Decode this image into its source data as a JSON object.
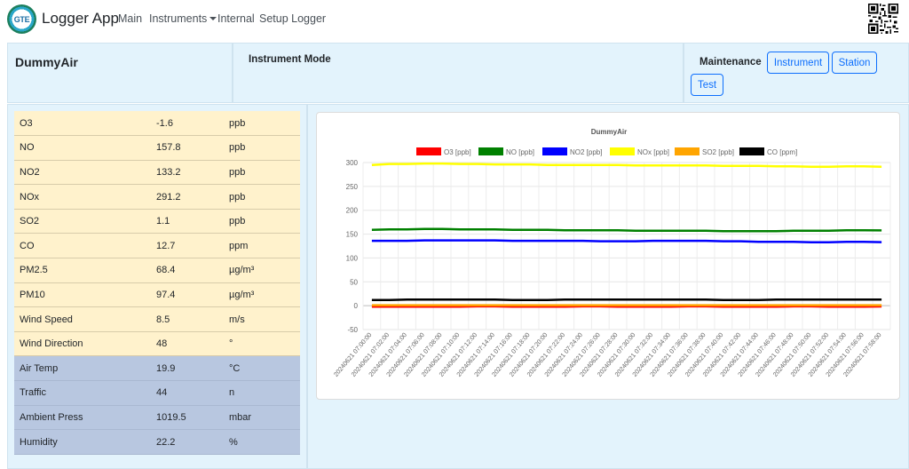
{
  "navbar": {
    "logo_text": "GTE",
    "brand": "Logger App",
    "links": [
      "Main",
      "Instruments",
      "Internal",
      "Setup Logger"
    ]
  },
  "device": {
    "name": "DummyAir"
  },
  "mode": {
    "label": "Instrument Mode"
  },
  "maintenance": {
    "label": "Maintenance",
    "buttons": [
      "Instrument",
      "Station",
      "Test"
    ]
  },
  "readings": [
    {
      "name": "O3",
      "value": "-1.6",
      "unit": "ppb",
      "group": "yellow"
    },
    {
      "name": "NO",
      "value": "157.8",
      "unit": "ppb",
      "group": "yellow"
    },
    {
      "name": "NO2",
      "value": "133.2",
      "unit": "ppb",
      "group": "yellow"
    },
    {
      "name": "NOx",
      "value": "291.2",
      "unit": "ppb",
      "group": "yellow"
    },
    {
      "name": "SO2",
      "value": "1.1",
      "unit": "ppb",
      "group": "yellow"
    },
    {
      "name": "CO",
      "value": "12.7",
      "unit": "ppm",
      "group": "yellow"
    },
    {
      "name": "PM2.5",
      "value": "68.4",
      "unit": "µg/m³",
      "group": "yellow"
    },
    {
      "name": "PM10",
      "value": "97.4",
      "unit": "µg/m³",
      "group": "yellow"
    },
    {
      "name": "Wind Speed",
      "value": "8.5",
      "unit": "m/s",
      "group": "yellow"
    },
    {
      "name": "Wind Direction",
      "value": "48",
      "unit": "°",
      "group": "yellow"
    },
    {
      "name": "Air Temp",
      "value": "19.9",
      "unit": "°C",
      "group": "blue"
    },
    {
      "name": "Traffic",
      "value": "44",
      "unit": "n",
      "group": "blue"
    },
    {
      "name": "Ambient Press",
      "value": "1019.5",
      "unit": "mbar",
      "group": "blue"
    },
    {
      "name": "Humidity",
      "value": "22.2",
      "unit": "%",
      "group": "blue"
    }
  ],
  "colors": {
    "panel_bg": "#e3f3fc",
    "accent": "#0d6efd",
    "row_yellow": "#fff2cc",
    "row_blue": "#b8c7e0"
  },
  "chart_data": {
    "type": "line",
    "title": "DummyAir",
    "ylim": [
      -50,
      300
    ],
    "yticks": [
      -50,
      0,
      50,
      100,
      150,
      200,
      250,
      300
    ],
    "x": [
      "20240621 07:00:00",
      "20240621 07:02:00",
      "20240621 07:04:00",
      "20240621 07:06:00",
      "20240621 07:08:00",
      "20240621 07:10:00",
      "20240621 07:12:00",
      "20240621 07:14:00",
      "20240621 07:16:00",
      "20240621 07:18:00",
      "20240621 07:20:00",
      "20240621 07:22:00",
      "20240621 07:24:00",
      "20240621 07:26:00",
      "20240621 07:28:00",
      "20240621 07:30:00",
      "20240621 07:32:00",
      "20240621 07:34:00",
      "20240621 07:36:00",
      "20240621 07:38:00",
      "20240621 07:40:00",
      "20240621 07:42:00",
      "20240621 07:44:00",
      "20240621 07:46:00",
      "20240621 07:48:00",
      "20240621 07:50:00",
      "20240621 07:52:00",
      "20240621 07:54:00",
      "20240621 07:56:00",
      "20240621 07:58:00"
    ],
    "grid": true,
    "legend_position": "top",
    "series": [
      {
        "name": "O3 [ppb]",
        "color": "#ff0000",
        "values": [
          -2,
          -2,
          -2,
          -2,
          -2,
          -2,
          -1.5,
          -1.5,
          -2,
          -2,
          -2,
          -2,
          -1.5,
          -1.5,
          -2,
          -2,
          -2,
          -2,
          -1.5,
          -1.5,
          -2,
          -2,
          -2,
          -2,
          -1.5,
          -1.5,
          -2,
          -2,
          -2,
          -1.6
        ]
      },
      {
        "name": "NO [ppb]",
        "color": "#008000",
        "values": [
          159,
          160,
          160,
          161,
          161,
          160,
          160,
          160,
          159,
          159,
          159,
          158,
          158,
          158,
          158,
          157,
          157,
          157,
          157,
          157,
          156,
          156,
          156,
          156,
          157,
          157,
          157,
          158,
          158,
          157.8
        ]
      },
      {
        "name": "NO2 [ppb]",
        "color": "#0000ff",
        "values": [
          136,
          136,
          136,
          137,
          137,
          137,
          137,
          137,
          136,
          136,
          136,
          136,
          136,
          135,
          135,
          135,
          136,
          136,
          136,
          136,
          135,
          135,
          134,
          134,
          134,
          133,
          133,
          134,
          134,
          133.2
        ]
      },
      {
        "name": "NOx [ppb]",
        "color": "#ffff00",
        "values": [
          295,
          297,
          297,
          298,
          298,
          297,
          297,
          296,
          296,
          296,
          295,
          295,
          295,
          295,
          295,
          294,
          294,
          294,
          294,
          294,
          293,
          293,
          293,
          292,
          292,
          291,
          291,
          292,
          292,
          291.2
        ]
      },
      {
        "name": "SO2 [ppb]",
        "color": "#ffa500",
        "values": [
          1,
          1,
          1,
          1,
          1,
          1,
          1,
          1,
          1,
          1,
          1,
          1,
          1,
          1,
          1,
          1,
          1,
          1,
          1,
          1,
          1,
          1,
          1,
          1,
          1,
          1,
          1,
          1,
          1,
          1.1
        ]
      },
      {
        "name": "CO [ppm]",
        "color": "#000000",
        "values": [
          12,
          12,
          13,
          13,
          13,
          13,
          13,
          13,
          12,
          12,
          12,
          13,
          13,
          13,
          13,
          13,
          13,
          13,
          13,
          13,
          12,
          12,
          12,
          13,
          13,
          13,
          13,
          13,
          13,
          12.7
        ]
      }
    ]
  }
}
